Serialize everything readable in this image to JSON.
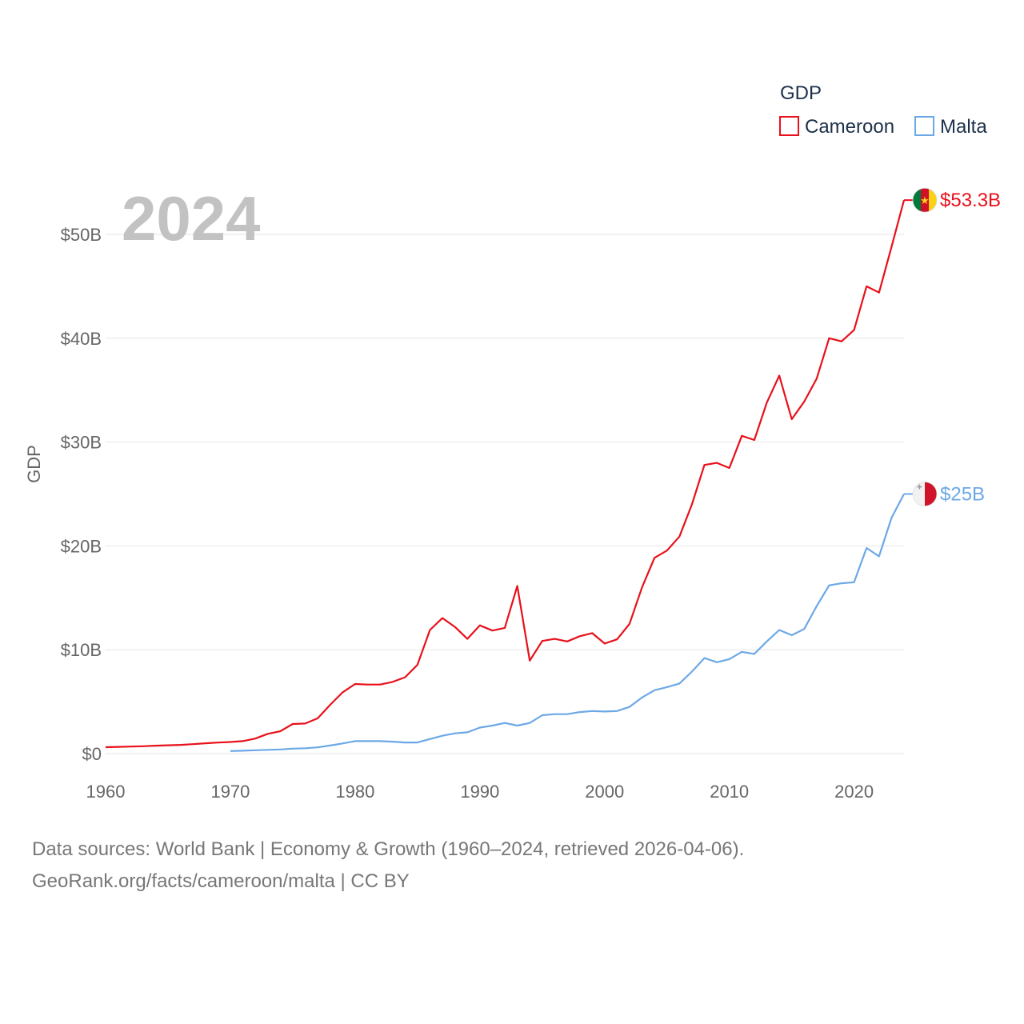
{
  "chart_data": {
    "type": "line",
    "title": "GDP",
    "year_label": "2024",
    "xlabel": "",
    "ylabel": "GDP",
    "xlim": [
      1960,
      2024
    ],
    "ylim": [
      0,
      55
    ],
    "x_ticks": [
      1960,
      1970,
      1980,
      1990,
      2000,
      2010,
      2020
    ],
    "y_ticks": [
      0,
      10,
      20,
      30,
      40,
      50
    ],
    "y_tick_labels": [
      "$0",
      "$10B",
      "$20B",
      "$30B",
      "$40B",
      "$50B"
    ],
    "legend": {
      "title": "GDP",
      "position": "top-right"
    },
    "series": [
      {
        "name": "Cameroon",
        "color": "#e8101a",
        "end_label": "$53.3B",
        "flag": "cameroon-flag",
        "x": [
          1960,
          1961,
          1962,
          1963,
          1964,
          1965,
          1966,
          1967,
          1968,
          1969,
          1970,
          1971,
          1972,
          1973,
          1974,
          1975,
          1976,
          1977,
          1978,
          1979,
          1980,
          1981,
          1982,
          1983,
          1984,
          1985,
          1986,
          1987,
          1988,
          1989,
          1990,
          1991,
          1992,
          1993,
          1994,
          1995,
          1996,
          1997,
          1998,
          1999,
          2000,
          2001,
          2002,
          2003,
          2004,
          2005,
          2006,
          2007,
          2008,
          2009,
          2010,
          2011,
          2012,
          2013,
          2014,
          2015,
          2016,
          2017,
          2018,
          2019,
          2020,
          2021,
          2022,
          2023,
          2024
        ],
        "values": [
          0.62,
          0.65,
          0.68,
          0.71,
          0.76,
          0.8,
          0.84,
          0.91,
          0.99,
          1.06,
          1.12,
          1.2,
          1.45,
          1.9,
          2.15,
          2.85,
          2.9,
          3.4,
          4.7,
          5.9,
          6.7,
          6.65,
          6.65,
          6.9,
          7.35,
          8.55,
          11.9,
          13.05,
          12.2,
          11.05,
          12.35,
          11.85,
          12.1,
          16.15,
          8.95,
          10.85,
          11.05,
          10.8,
          11.3,
          11.6,
          10.6,
          11.0,
          12.5,
          16.0,
          18.85,
          19.55,
          20.9,
          24.0,
          27.8,
          28.0,
          27.5,
          30.6,
          30.2,
          33.8,
          36.4,
          32.2,
          33.9,
          36.1,
          40.0,
          39.7,
          40.8,
          45.0,
          44.4,
          48.8,
          53.3
        ]
      },
      {
        "name": "Malta",
        "color": "#6ca8e6",
        "end_label": "$25B",
        "flag": "malta-flag",
        "x": [
          1970,
          1971,
          1972,
          1973,
          1974,
          1975,
          1976,
          1977,
          1978,
          1979,
          1980,
          1981,
          1982,
          1983,
          1984,
          1985,
          1986,
          1987,
          1988,
          1989,
          1990,
          1991,
          1992,
          1993,
          1994,
          1995,
          1996,
          1997,
          1998,
          1999,
          2000,
          2001,
          2002,
          2003,
          2004,
          2005,
          2006,
          2007,
          2008,
          2009,
          2010,
          2011,
          2012,
          2013,
          2014,
          2015,
          2016,
          2017,
          2018,
          2019,
          2020,
          2021,
          2022,
          2023,
          2024
        ],
        "values": [
          0.25,
          0.28,
          0.32,
          0.36,
          0.4,
          0.48,
          0.52,
          0.6,
          0.78,
          0.98,
          1.2,
          1.2,
          1.2,
          1.15,
          1.07,
          1.07,
          1.4,
          1.72,
          1.95,
          2.05,
          2.5,
          2.7,
          2.95,
          2.7,
          2.95,
          3.7,
          3.8,
          3.8,
          4.0,
          4.1,
          4.05,
          4.1,
          4.5,
          5.4,
          6.1,
          6.4,
          6.75,
          7.9,
          9.2,
          8.8,
          9.1,
          9.8,
          9.6,
          10.8,
          11.9,
          11.4,
          12.0,
          14.2,
          16.2,
          16.4,
          16.5,
          19.8,
          19.0,
          22.7,
          25.0
        ]
      }
    ]
  },
  "footer": {
    "line1": "Data sources: World Bank | Economy & Growth (1960–2024, retrieved 2026-04-06).",
    "line2": "GeoRank.org/facts/cameroon/malta | CC BY"
  }
}
